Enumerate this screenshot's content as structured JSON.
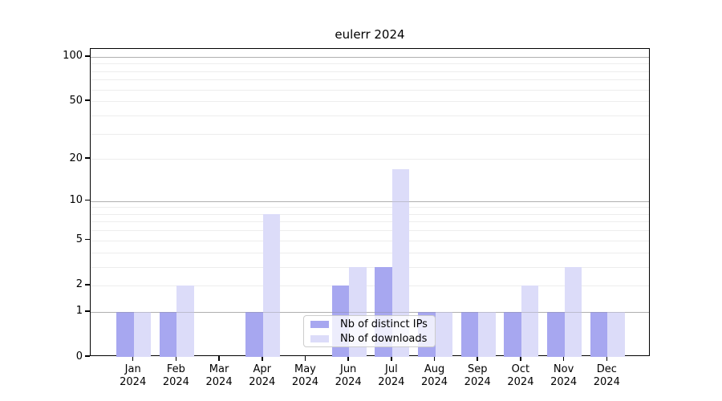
{
  "title": "eulerr 2024",
  "colors": {
    "bar_distinct_ips": "#a7a7f0",
    "bar_downloads": "#dcdcf9",
    "grid_minor": "#ededed",
    "grid_decade": "#c9c9c9",
    "spine": "#000000",
    "legend_border": "#cccccc"
  },
  "chart_data": {
    "type": "bar",
    "title": "eulerr 2024",
    "categories": [
      "Jan 2024",
      "Feb 2024",
      "Mar 2024",
      "Apr 2024",
      "May 2024",
      "Jun 2024",
      "Jul 2024",
      "Aug 2024",
      "Sep 2024",
      "Oct 2024",
      "Nov 2024",
      "Dec 2024"
    ],
    "x_tick_month": [
      "Jan",
      "Feb",
      "Mar",
      "Apr",
      "May",
      "Jun",
      "Jul",
      "Aug",
      "Sep",
      "Oct",
      "Nov",
      "Dec"
    ],
    "x_tick_year": "2024",
    "series": [
      {
        "name": "Nb of distinct IPs",
        "color": "#a7a7f0",
        "values": [
          1,
          1,
          0,
          1,
          0,
          2,
          3,
          1,
          1,
          1,
          1,
          1
        ]
      },
      {
        "name": "Nb of downloads",
        "color": "#dcdcf9",
        "values": [
          1,
          2,
          0,
          8,
          0,
          3,
          17,
          1,
          1,
          2,
          3,
          1
        ]
      }
    ],
    "y_scale": "log1p",
    "y_ticks": [
      0,
      1,
      2,
      5,
      10,
      20,
      50,
      100
    ],
    "y_grid_decade": [
      1,
      10,
      100
    ],
    "y_grid_minor": [
      2,
      3,
      4,
      5,
      6,
      7,
      8,
      9,
      20,
      30,
      40,
      50,
      60,
      70,
      80,
      90
    ],
    "ylim": [
      0,
      113
    ],
    "xlim_units": [
      -1,
      12
    ],
    "bar_width_units": 0.4,
    "grid": true,
    "legend_position": "lower center"
  }
}
